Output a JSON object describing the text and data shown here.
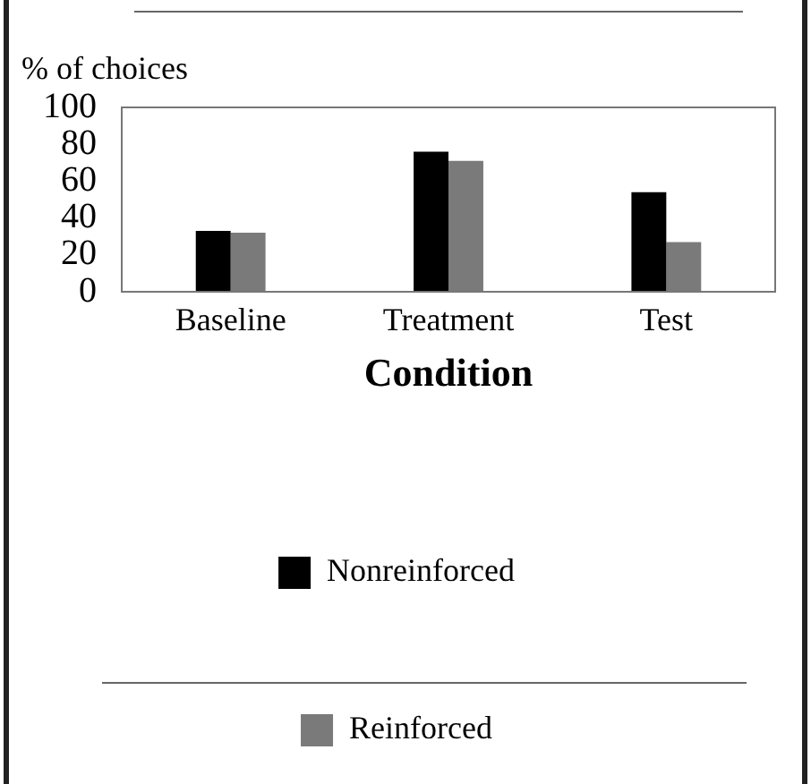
{
  "chart_data": {
    "type": "bar",
    "ylabel": "% of choices",
    "xlabel": "Condition",
    "categories": [
      "Baseline",
      "Treatment",
      "Test"
    ],
    "series": [
      {
        "name": "Nonreinforced",
        "color": "#000000",
        "values": [
          33,
          76,
          54
        ]
      },
      {
        "name": "Reinforced",
        "color": "#7a7a7a",
        "values": [
          32,
          71,
          27
        ]
      }
    ],
    "ylim": [
      0,
      100
    ],
    "yticks": [
      0,
      20,
      40,
      60,
      80,
      100
    ],
    "grid": false,
    "legend": "bottom"
  }
}
